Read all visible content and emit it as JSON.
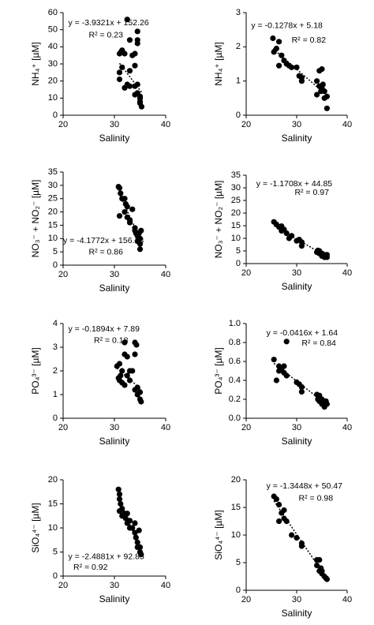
{
  "chart_data": [
    {
      "type": "scatter",
      "color": "#000000",
      "xlabel": "Salinity",
      "ylabel": "NH₄⁺ [µM]",
      "equation": "y = -3.9321x + 152.26",
      "r2": "R² = 0.23",
      "trendline": {
        "slope": -3.9321,
        "intercept": 152.26
      },
      "xlim": [
        20,
        40
      ],
      "xticks": [
        20,
        30,
        40
      ],
      "ylim": [
        0,
        60
      ],
      "yticks": [
        0,
        10,
        20,
        30,
        40,
        50,
        60
      ],
      "x": [
        31,
        31,
        31.5,
        31,
        31.5,
        31.3,
        32,
        32.5,
        32,
        32.5,
        33,
        33,
        33.5,
        34,
        34,
        34.5,
        34.5,
        34.5,
        34,
        34.5,
        34.5,
        35,
        35,
        35,
        35.3,
        35,
        33,
        34
      ],
      "values": [
        21,
        25,
        28,
        36,
        38,
        37,
        36,
        56,
        16,
        18,
        17,
        44,
        35,
        29,
        36,
        49,
        44,
        42,
        17,
        18,
        13,
        11,
        8,
        7,
        5,
        10,
        26,
        12
      ]
    },
    {
      "type": "scatter",
      "color": "#000000",
      "xlabel": "Salinity",
      "ylabel": "NH₄⁺ [µM]",
      "equation": "y = -0.1278x + 5.18",
      "r2": "R² = 0.82",
      "trendline": {
        "slope": -0.1278,
        "intercept": 5.18
      },
      "xlim": [
        20,
        40
      ],
      "xticks": [
        20,
        30,
        40
      ],
      "ylim": [
        0,
        3
      ],
      "yticks": [
        0,
        1,
        2,
        3
      ],
      "x": [
        25.3,
        25.5,
        26,
        26.5,
        26.5,
        27,
        27.5,
        28,
        28.5,
        29,
        30,
        30.5,
        31,
        31,
        34,
        34,
        34.5,
        34.5,
        35,
        35,
        35.5,
        35.5,
        36,
        36,
        34.8,
        35.2
      ],
      "values": [
        2.25,
        1.85,
        1.95,
        2.15,
        1.45,
        1.75,
        1.6,
        1.5,
        1.45,
        1.4,
        1.4,
        1.15,
        1.0,
        1.1,
        1.0,
        0.6,
        1.3,
        0.85,
        1.35,
        0.8,
        0.7,
        0.5,
        0.55,
        0.2,
        0.7,
        0.9
      ]
    },
    {
      "type": "scatter",
      "color": "#000000",
      "xlabel": "Salinity",
      "ylabel": "NO₃⁻ + NO₂⁻ [µM]",
      "equation": "y = -4.1772x + 156.13",
      "r2": "R² = 0.86",
      "trendline": {
        "slope": -4.1772,
        "intercept": 156.13
      },
      "xlim": [
        20,
        40
      ],
      "xticks": [
        20,
        30,
        40
      ],
      "ylim": [
        0,
        35
      ],
      "yticks": [
        0,
        5,
        10,
        15,
        20,
        25,
        30,
        35
      ],
      "x": [
        30.8,
        31,
        31.2,
        31,
        31.5,
        32,
        32.2,
        32.5,
        32,
        32.5,
        33,
        33.5,
        33,
        34,
        34,
        34.2,
        34.5,
        34.5,
        35,
        35,
        35,
        35.2,
        34.8
      ],
      "values": [
        29.5,
        29,
        27,
        18.5,
        25,
        25,
        23,
        22,
        20,
        18,
        17,
        21,
        16,
        14,
        13,
        12,
        11,
        9,
        10,
        8,
        6,
        13,
        12
      ]
    },
    {
      "type": "scatter",
      "color": "#000000",
      "xlabel": "Salinity",
      "ylabel": "NO₃⁻ + NO₂⁻ [µM]",
      "equation": "y = -1.1708x + 44.85",
      "r2": "R² = 0.97",
      "trendline": {
        "slope": -1.1708,
        "intercept": 44.85
      },
      "xlim": [
        20,
        40
      ],
      "xticks": [
        20,
        30,
        40
      ],
      "ylim": [
        0,
        35
      ],
      "yticks": [
        0,
        5,
        10,
        15,
        20,
        25,
        30,
        35
      ],
      "x": [
        25.5,
        26,
        26.5,
        27,
        27,
        27.5,
        28,
        28.5,
        29,
        30,
        30.5,
        31,
        31,
        34,
        34.5,
        34.5,
        35,
        35,
        35.5,
        35.5,
        36,
        36,
        34.2
      ],
      "values": [
        16.5,
        15.5,
        14.5,
        14.8,
        13,
        13.5,
        12,
        10,
        11,
        9,
        9.5,
        8.5,
        7,
        4.5,
        4,
        5,
        4,
        3,
        3.5,
        2.5,
        3.5,
        2.5,
        5.2
      ]
    },
    {
      "type": "scatter",
      "color": "#000000",
      "xlabel": "Salinity",
      "ylabel": "PO₄³⁻ [µM]",
      "equation": "y = -0.1894x + 7.89",
      "r2": "R² = 0.18",
      "trendline": {
        "slope": -0.1894,
        "intercept": 7.89
      },
      "xlim": [
        20,
        40
      ],
      "xticks": [
        20,
        30,
        40
      ],
      "ylim": [
        0,
        4
      ],
      "yticks": [
        0,
        1,
        2,
        3,
        4
      ],
      "x": [
        30.5,
        30.8,
        31,
        31,
        31.2,
        31.5,
        31.5,
        32,
        32,
        32,
        32.5,
        32.5,
        33,
        33.5,
        34,
        34,
        34.3,
        34,
        34.5,
        34.5,
        35,
        35,
        35.2,
        33
      ],
      "values": [
        2.2,
        1.7,
        2.3,
        1.6,
        1.8,
        2.0,
        1.5,
        1.4,
        3.2,
        2.7,
        1.8,
        2.6,
        1.6,
        2.0,
        3.2,
        2.7,
        3.1,
        1.2,
        1.0,
        1.3,
        0.8,
        1.1,
        0.7,
        2.0
      ]
    },
    {
      "type": "scatter",
      "color": "#000000",
      "xlabel": "Salinity",
      "ylabel": "PO₄³⁻ [µM]",
      "equation": "y = -0.0416x + 1.64",
      "r2": "R² = 0.84",
      "trendline": {
        "slope": -0.0416,
        "intercept": 1.64
      },
      "xlim": [
        20,
        40
      ],
      "xticks": [
        20,
        30,
        40
      ],
      "ylim": [
        0,
        1
      ],
      "yticks": [
        {
          "value": 0,
          "label": "0.0"
        },
        0.2,
        0.4,
        0.6,
        0.8,
        {
          "value": 1,
          "label": "1.0"
        }
      ],
      "x": [
        25.5,
        26,
        26.5,
        26.5,
        27,
        27.5,
        27.5,
        28,
        28,
        30,
        30.5,
        31,
        31,
        34,
        34.2,
        34.5,
        34.5,
        35,
        35,
        35.5,
        36,
        35.8
      ],
      "values": [
        0.62,
        0.4,
        0.55,
        0.5,
        0.52,
        0.55,
        0.48,
        0.81,
        0.45,
        0.38,
        0.36,
        0.28,
        0.33,
        0.25,
        0.2,
        0.18,
        0.24,
        0.15,
        0.2,
        0.12,
        0.15,
        0.18
      ]
    },
    {
      "type": "scatter",
      "color": "#000000",
      "xlabel": "Salinity",
      "ylabel": "SiO₄⁴⁻ [µM]",
      "equation": "y = -2.4881x + 92.85",
      "r2": "R² = 0.92",
      "trendline": {
        "slope": -2.4881,
        "intercept": 92.85
      },
      "xlim": [
        20,
        40
      ],
      "xticks": [
        20,
        30,
        40
      ],
      "ylim": [
        0,
        20
      ],
      "yticks": [
        0,
        5,
        10,
        15,
        20
      ],
      "x": [
        30.8,
        31,
        31,
        31.2,
        31,
        31.5,
        32,
        32,
        32.2,
        32.5,
        32.5,
        33,
        33,
        33.5,
        34,
        34,
        34.2,
        34.5,
        34.5,
        35,
        35,
        35.2,
        34.8,
        31.5
      ],
      "values": [
        18,
        17,
        16,
        15,
        13.5,
        14,
        13,
        12.5,
        12,
        13,
        11,
        10,
        11.5,
        10,
        9,
        11,
        8,
        7,
        6,
        6,
        5,
        4.5,
        9.5,
        12.5
      ]
    },
    {
      "type": "scatter",
      "color": "#000000",
      "xlabel": "Salinity",
      "ylabel": "SiO₄⁴⁻ [µM]",
      "equation": "y = -1.3448x + 50.47",
      "r2": "R² = 0.98",
      "trendline": {
        "slope": -1.3448,
        "intercept": 50.47
      },
      "xlim": [
        20,
        40
      ],
      "xticks": [
        20,
        30,
        40
      ],
      "ylim": [
        0,
        20
      ],
      "yticks": [
        0,
        5,
        10,
        15,
        20
      ],
      "x": [
        25.5,
        26,
        26.5,
        26.5,
        27,
        27.5,
        27.5,
        28,
        29,
        30,
        31,
        31,
        34,
        34,
        34.5,
        34.5,
        35,
        35,
        35.5,
        36,
        35.8,
        34.8
      ],
      "values": [
        17,
        16.5,
        15.5,
        12.5,
        14,
        13,
        14.5,
        12.5,
        10,
        9.5,
        8.5,
        8,
        5.5,
        4.5,
        5.5,
        3.5,
        3,
        3.5,
        2.5,
        2,
        2.2,
        4
      ]
    }
  ]
}
